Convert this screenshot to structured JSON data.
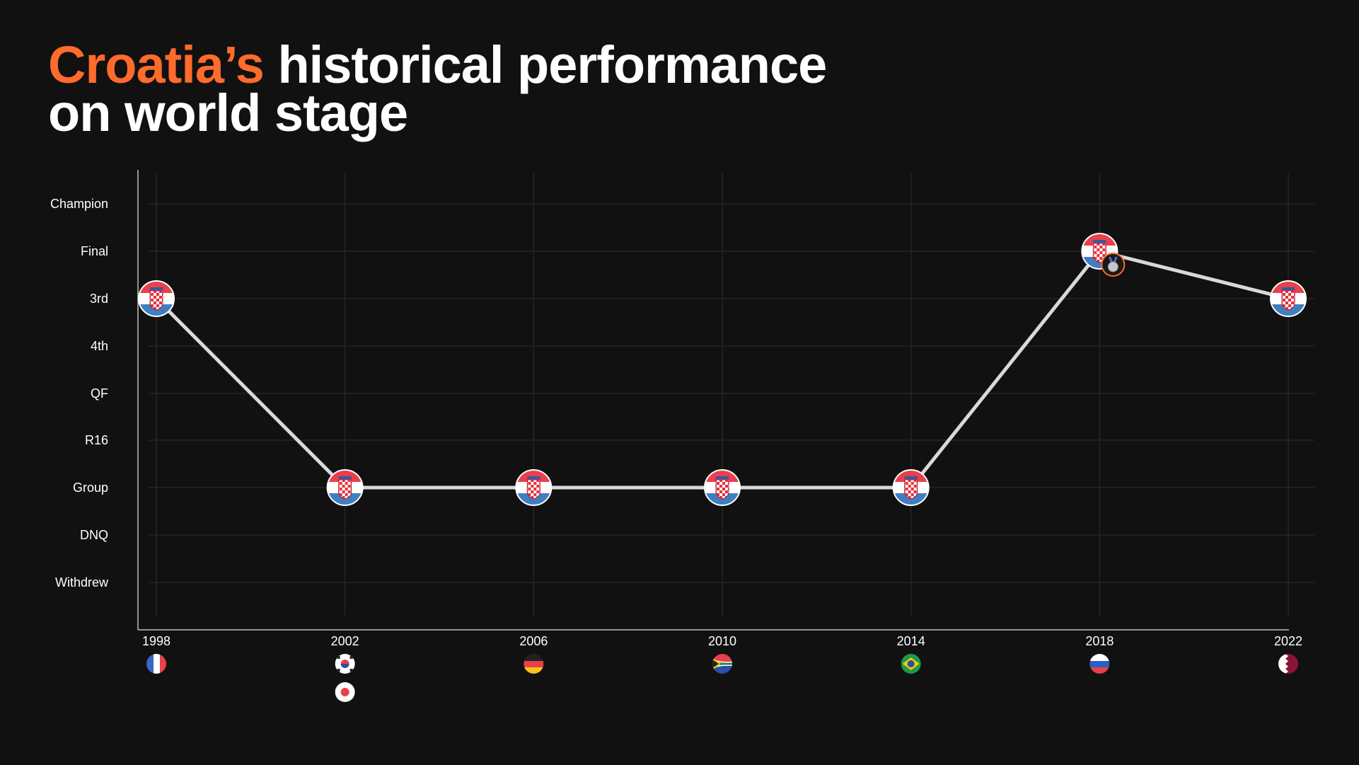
{
  "title": {
    "accent": "Croatia’s",
    "line1_rest": " historical performance",
    "line2": "on world stage"
  },
  "colors": {
    "background": "#111111",
    "accent": "#ff6b2c",
    "line": "#d9d9d9",
    "grid": "#2e2e2e",
    "axis": "#bfbfbf"
  },
  "chart_data": {
    "type": "line",
    "title": "Croatia’s historical performance on world stage",
    "xlabel": "",
    "ylabel": "",
    "grid": true,
    "categories_y": [
      "Champion",
      "Final",
      "3rd",
      "4th",
      "QF",
      "R16",
      "Group",
      "DNQ",
      "Withdrew"
    ],
    "x": [
      "1998",
      "2002",
      "2006",
      "2010",
      "2014",
      "2018",
      "2022"
    ],
    "series": [
      {
        "values": [
          "3rd",
          "Group",
          "Group",
          "Group",
          "Group",
          "Final",
          "3rd"
        ]
      }
    ],
    "point_marker": "croatia-flag-icon",
    "annotations": [
      {
        "x": "2018",
        "marker": "silver-medal-icon"
      }
    ],
    "host_flags": [
      {
        "year": "1998",
        "icons": [
          "france-flag-icon"
        ]
      },
      {
        "year": "2002",
        "icons": [
          "south-korea-flag-icon",
          "japan-flag-icon"
        ]
      },
      {
        "year": "2006",
        "icons": [
          "germany-flag-icon"
        ]
      },
      {
        "year": "2010",
        "icons": [
          "south-africa-flag-icon"
        ]
      },
      {
        "year": "2014",
        "icons": [
          "brazil-flag-icon"
        ]
      },
      {
        "year": "2018",
        "icons": [
          "russia-flag-icon"
        ]
      },
      {
        "year": "2022",
        "icons": [
          "qatar-flag-icon"
        ]
      }
    ]
  }
}
